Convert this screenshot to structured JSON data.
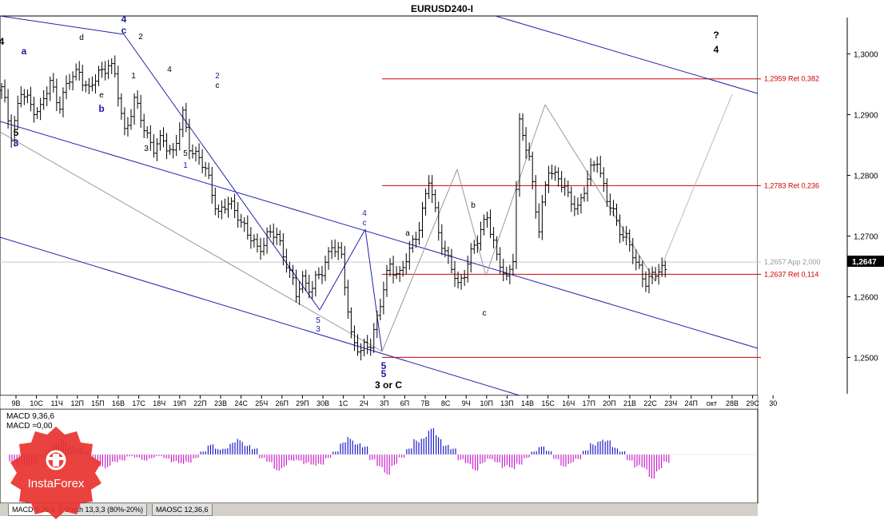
{
  "window": {
    "title": "EURUSD240-I"
  },
  "price_axis": {
    "current_price": "1,2647"
  },
  "chart_data": {
    "type": "candlestick",
    "title": "EURUSD240-I",
    "ylim": [
      1.244,
      1.306
    ],
    "y_ticks": [
      1.25,
      1.26,
      1.27,
      1.28,
      1.29,
      1.3
    ],
    "y_tick_labels": [
      "1,2500",
      "1,2600",
      "1,2700",
      "1,2800",
      "1,2900",
      "1,3000"
    ],
    "x_tick_labels": [
      "9В",
      "10С",
      "11Ч",
      "12П",
      "15П",
      "16В",
      "17С",
      "18Ч",
      "19П",
      "22П",
      "23В",
      "24С",
      "25Ч",
      "26П",
      "29П",
      "30В",
      "1С",
      "2Ч",
      "3П",
      "6П",
      "7В",
      "8С",
      "9Ч",
      "10П",
      "13П",
      "14В",
      "15С",
      "16Ч",
      "17П",
      "20П",
      "21В",
      "22С",
      "23Ч",
      "24П",
      "окт",
      "28В",
      "29С",
      "30"
    ],
    "price_path": [
      {
        "i": 0,
        "p": 1.294
      },
      {
        "i": 3,
        "p": 1.287
      },
      {
        "i": 6,
        "p": 1.2935
      },
      {
        "i": 9,
        "p": 1.2915
      },
      {
        "i": 12,
        "p": 1.291
      },
      {
        "i": 15,
        "p": 1.295
      },
      {
        "i": 18,
        "p": 1.292
      },
      {
        "i": 21,
        "p": 1.2955
      },
      {
        "i": 24,
        "p": 1.2975
      },
      {
        "i": 27,
        "p": 1.2935
      },
      {
        "i": 30,
        "p": 1.297
      },
      {
        "i": 33,
        "p": 1.2985
      },
      {
        "i": 35,
        "p": 1.296
      },
      {
        "i": 38,
        "p": 1.2875
      },
      {
        "i": 41,
        "p": 1.292
      },
      {
        "i": 44,
        "p": 1.288
      },
      {
        "i": 47,
        "p": 1.2845
      },
      {
        "i": 50,
        "p": 1.2855
      },
      {
        "i": 53,
        "p": 1.284
      },
      {
        "i": 56,
        "p": 1.2895
      },
      {
        "i": 58,
        "p": 1.285
      },
      {
        "i": 61,
        "p": 1.283
      },
      {
        "i": 64,
        "p": 1.279
      },
      {
        "i": 67,
        "p": 1.274
      },
      {
        "i": 70,
        "p": 1.275
      },
      {
        "i": 73,
        "p": 1.274
      },
      {
        "i": 76,
        "p": 1.27
      },
      {
        "i": 79,
        "p": 1.268
      },
      {
        "i": 82,
        "p": 1.27
      },
      {
        "i": 85,
        "p": 1.27
      },
      {
        "i": 88,
        "p": 1.266
      },
      {
        "i": 91,
        "p": 1.26
      },
      {
        "i": 93,
        "p": 1.263
      },
      {
        "i": 96,
        "p": 1.2615
      },
      {
        "i": 99,
        "p": 1.264
      },
      {
        "i": 102,
        "p": 1.269
      },
      {
        "i": 105,
        "p": 1.266
      },
      {
        "i": 108,
        "p": 1.254
      },
      {
        "i": 111,
        "p": 1.2505
      },
      {
        "i": 114,
        "p": 1.2525
      },
      {
        "i": 117,
        "p": 1.259
      },
      {
        "i": 120,
        "p": 1.265
      },
      {
        "i": 123,
        "p": 1.264
      },
      {
        "i": 126,
        "p": 1.267
      },
      {
        "i": 129,
        "p": 1.272
      },
      {
        "i": 132,
        "p": 1.279
      },
      {
        "i": 135,
        "p": 1.271
      },
      {
        "i": 138,
        "p": 1.266
      },
      {
        "i": 141,
        "p": 1.2615
      },
      {
        "i": 144,
        "p": 1.266
      },
      {
        "i": 147,
        "p": 1.269
      },
      {
        "i": 150,
        "p": 1.274
      },
      {
        "i": 153,
        "p": 1.266
      },
      {
        "i": 156,
        "p": 1.263
      },
      {
        "i": 158,
        "p": 1.267
      },
      {
        "i": 160,
        "p": 1.288
      },
      {
        "i": 163,
        "p": 1.283
      },
      {
        "i": 166,
        "p": 1.271
      },
      {
        "i": 169,
        "p": 1.281
      },
      {
        "i": 172,
        "p": 1.28
      },
      {
        "i": 175,
        "p": 1.276
      },
      {
        "i": 178,
        "p": 1.275
      },
      {
        "i": 181,
        "p": 1.279
      },
      {
        "i": 184,
        "p": 1.283
      },
      {
        "i": 187,
        "p": 1.276
      },
      {
        "i": 190,
        "p": 1.272
      },
      {
        "i": 193,
        "p": 1.27
      },
      {
        "i": 196,
        "p": 1.265
      },
      {
        "i": 199,
        "p": 1.263
      },
      {
        "i": 202,
        "p": 1.2635
      },
      {
        "i": 205,
        "p": 1.2647
      }
    ],
    "levels": [
      {
        "price": 1.2959,
        "label": "1,2959 Ret 0,382",
        "color": "#d00000"
      },
      {
        "price": 1.2783,
        "label": "1,2783 Ret 0,236",
        "color": "#d00000"
      },
      {
        "price": 1.2637,
        "label": "1,2637 Ret 0,114",
        "color": "#d00000"
      },
      {
        "price": 1.2657,
        "label": "1,2657 App 2,000",
        "color": "#c8c8c8"
      },
      {
        "price": 1.25,
        "label": "",
        "color": "#d00000"
      }
    ],
    "wave_labels": [
      {
        "t": "4",
        "color": "#000000",
        "bold": true
      },
      {
        "t": "5",
        "color": "#000000",
        "bold": true
      },
      {
        "t": "3",
        "color": "#1a1aa0",
        "bold": true
      },
      {
        "t": "a",
        "color": "#1a1aa0",
        "bold": true
      },
      {
        "t": "b",
        "color": "#1a1aa0",
        "bold": true
      },
      {
        "t": "4",
        "color": "#1a1aa0",
        "bold": true
      },
      {
        "t": "c",
        "color": "#1a1aa0",
        "bold": true
      },
      {
        "t": "2",
        "color": "#1a1aa0",
        "bold": false
      },
      {
        "t": "c",
        "color": "#000000",
        "bold": false
      },
      {
        "t": "1",
        "color": "#1a1aa0",
        "bold": false
      },
      {
        "t": "4",
        "color": "#1a1aa0",
        "bold": false
      },
      {
        "t": "c",
        "color": "#1a1aa0",
        "bold": false
      },
      {
        "t": "5",
        "color": "#1a1aa0",
        "bold": false
      },
      {
        "t": "3",
        "color": "#1a1aa0",
        "bold": false
      },
      {
        "t": "5",
        "color": "#1a1aa0",
        "bold": true
      },
      {
        "t": "5",
        "color": "#1a1aa0",
        "bold": true
      },
      {
        "t": "3 or C",
        "color": "#000000",
        "bold": true
      },
      {
        "t": "?",
        "color": "#000000",
        "bold": true
      },
      {
        "t": "4",
        "color": "#000000",
        "bold": true
      },
      {
        "t": "a",
        "color": "#000000",
        "bold": false
      },
      {
        "t": "b",
        "color": "#000000",
        "bold": false
      },
      {
        "t": "c",
        "color": "#000000",
        "bold": false
      },
      {
        "t": "d",
        "color": "#000000",
        "bold": false
      },
      {
        "t": "e",
        "color": "#000000",
        "bold": false
      },
      {
        "t": "1",
        "color": "#000000",
        "bold": false
      },
      {
        "t": "2",
        "color": "#000000",
        "bold": false
      },
      {
        "t": "3",
        "color": "#000000",
        "bold": false
      },
      {
        "t": "4",
        "color": "#000000",
        "bold": false
      },
      {
        "t": "5",
        "color": "#000000",
        "bold": false
      }
    ],
    "macd": {
      "label": "MACD 9,36,6",
      "sub_label": "MACD =0,00",
      "histogram": [
        -0.4,
        -0.6,
        -0.8,
        -0.5,
        -0.2,
        0.3,
        0.6,
        0.8,
        0.6,
        0.3,
        0.2,
        -0.3,
        -0.6,
        -0.7,
        -0.5,
        -0.3,
        -0.1,
        -0.2,
        -0.3,
        -0.2,
        -0.1,
        -0.2,
        -0.4,
        -0.6,
        -0.4,
        -0.2,
        0.2,
        0.5,
        0.3,
        0.4,
        0.6,
        0.8,
        0.6,
        0.3,
        -0.2,
        -0.5,
        -0.8,
        -0.7,
        -0.4,
        -0.3,
        -0.5,
        -0.7,
        -0.5,
        -0.2,
        0.2,
        0.6,
        0.9,
        0.7,
        0.4,
        -0.3,
        -0.8,
        -1.0,
        -0.6,
        -0.2,
        0.3,
        0.8,
        1.1,
        1.3,
        1.0,
        0.6,
        0.3,
        -0.3,
        -0.6,
        -0.8,
        -0.5,
        -0.3,
        -0.4,
        -0.7,
        -0.9,
        -0.5,
        -0.2,
        0.2,
        0.4,
        0.2,
        -0.3,
        -0.6,
        -0.5,
        -0.3,
        0.2,
        0.6,
        0.9,
        0.7,
        0.4,
        0.2,
        -0.3,
        -0.7,
        -0.9,
        -1.2,
        -0.9,
        -0.5
      ],
      "ylim": [
        -1.5,
        1.5
      ],
      "positive_color": "#1a1acc",
      "negative_color": "#cc22cc"
    }
  },
  "indicator_tabs": [
    {
      "label": "MACD 9,36,6",
      "active": true
    },
    {
      "label": "Stoch 13,3,3 (80%-20%)",
      "active": false
    },
    {
      "label": "MAOSC 12,36,6",
      "active": false
    }
  ],
  "logo": {
    "text": "InstaForex",
    "color": "#e8332f"
  }
}
